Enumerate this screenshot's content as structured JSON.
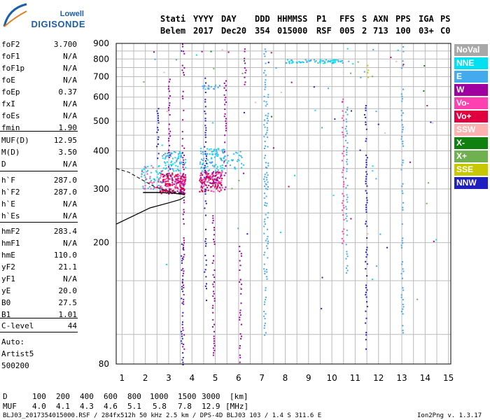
{
  "logo": {
    "brand": "Lowell",
    "product": "DIGISONDE"
  },
  "header": {
    "labels": [
      "Stati",
      "YYYY",
      "DAY",
      "DDD",
      "HHMMSS",
      "P1",
      "FFS",
      "S",
      "AXN",
      "PPS",
      "IGA",
      "PS"
    ],
    "values": [
      "Belem",
      "2017",
      "Dec20",
      "354",
      "015000",
      "RSF",
      "005",
      "2",
      "713",
      "100",
      "03+",
      "C0"
    ]
  },
  "params": {
    "group1": [
      {
        "name": "foF2",
        "value": "3.700"
      },
      {
        "name": "foF1",
        "value": "N/A"
      },
      {
        "name": "foF1p",
        "value": "N/A"
      },
      {
        "name": "foE",
        "value": "N/A"
      },
      {
        "name": "foEp",
        "value": "0.37"
      },
      {
        "name": "fxI",
        "value": "N/A"
      },
      {
        "name": "foEs",
        "value": "N/A"
      },
      {
        "name": "fmin",
        "value": "1.90"
      }
    ],
    "group2": [
      {
        "name": "MUF(D)",
        "value": "12.95"
      },
      {
        "name": "M(D)",
        "value": "3.50"
      },
      {
        "name": "D",
        "value": "N/A"
      }
    ],
    "group3": [
      {
        "name": "h`F",
        "value": "287.0"
      },
      {
        "name": "h`F2",
        "value": "287.0"
      },
      {
        "name": "h`E",
        "value": "N/A"
      },
      {
        "name": "h`Es",
        "value": "N/A"
      }
    ],
    "group4": [
      {
        "name": "hmF2",
        "value": "283.4"
      },
      {
        "name": "hmF1",
        "value": "N/A"
      },
      {
        "name": "hmE",
        "value": "110.0"
      },
      {
        "name": "yF2",
        "value": "21.1"
      },
      {
        "name": "yF1",
        "value": "N/A"
      },
      {
        "name": "yE",
        "value": "20.0"
      },
      {
        "name": "B0",
        "value": "27.5"
      },
      {
        "name": "B1",
        "value": "1.01"
      }
    ],
    "group5": [
      {
        "name": "C-level",
        "value": "44"
      }
    ]
  },
  "auto": {
    "title": "Auto:",
    "software": "Artist5",
    "code": "500200"
  },
  "legend": [
    {
      "label": "NoVal",
      "color": "#a8a8a8"
    },
    {
      "label": "NNE",
      "color": "#00e0f0"
    },
    {
      "label": "E",
      "color": "#44aaee"
    },
    {
      "label": "W",
      "color": "#a000a0"
    },
    {
      "label": "Vo-",
      "color": "#ff40b0"
    },
    {
      "label": "Vo+",
      "color": "#e00040"
    },
    {
      "label": "SSW",
      "color": "#ffb0b0"
    },
    {
      "label": "X-",
      "color": "#108010"
    },
    {
      "label": "X+",
      "color": "#70b050"
    },
    {
      "label": "SSE",
      "color": "#c8c800"
    },
    {
      "label": "NNW",
      "color": "#2020c0"
    }
  ],
  "muf_table": {
    "d_label": "D",
    "d_values": [
      "100",
      "200",
      "400",
      "600",
      "800",
      "1000",
      "1500",
      "3000"
    ],
    "d_unit": "[km]",
    "muf_label": "MUF",
    "muf_values": [
      "4.0",
      "4.1",
      "4.3",
      "4.6",
      "5.1",
      "5.8",
      "7.8",
      "12.9"
    ],
    "muf_unit": "[MHz]"
  },
  "footer": {
    "file_info": "BLJ03_2017354015000.RSF / 284fx512h 50 kHz 2.5 km / DPS-4D BLJ03 103 / 1.4 S 311.6 E",
    "version": "Ion2Png v. 1.3.17"
  },
  "chart_data": {
    "type": "scatter",
    "title": "",
    "xlabel": "",
    "ylabel": "",
    "xlim": [
      0.75,
      15.1
    ],
    "ylim": [
      80,
      900
    ],
    "x_ticks": [
      1,
      2,
      3,
      4,
      5,
      6,
      7,
      8,
      9,
      10,
      11,
      12,
      13,
      14,
      15
    ],
    "y_ticks": [
      80,
      200,
      300,
      400,
      500,
      600,
      700,
      800,
      900
    ],
    "y_tick_labels": [
      "80",
      "200",
      "300",
      "400",
      "500",
      "600",
      "700",
      "800",
      "900"
    ],
    "y_scale": "log",
    "grid": true,
    "profile_curve": {
      "color": "#000000",
      "points": [
        [
          0.75,
          230
        ],
        [
          1.5,
          245
        ],
        [
          2.2,
          260
        ],
        [
          3.0,
          270
        ],
        [
          3.5,
          277
        ],
        [
          3.7,
          283
        ]
      ]
    },
    "dashed_curve": {
      "color": "#000000",
      "points": [
        [
          0.75,
          350
        ],
        [
          1.3,
          340
        ],
        [
          1.9,
          320
        ],
        [
          2.4,
          305
        ],
        [
          3.0,
          295
        ],
        [
          3.7,
          290
        ]
      ]
    },
    "foF2_trace": {
      "color": "#000000",
      "points": [
        [
          1.9,
          292
        ],
        [
          2.5,
          292
        ],
        [
          3.1,
          291
        ],
        [
          3.5,
          289
        ],
        [
          3.7,
          287
        ]
      ]
    }
  }
}
